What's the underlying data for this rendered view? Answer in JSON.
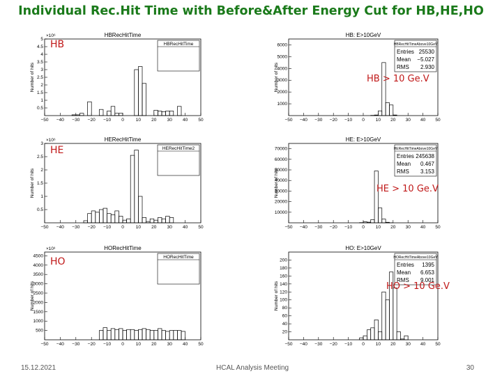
{
  "title": "Individual Rec.Hit Time with Before&After Energy Cut for HB,HE,HO",
  "footer": {
    "date": "15.12.2021",
    "meeting": "HCAL Analysis Meeting",
    "page": "30"
  },
  "colors": {
    "title": "#1a7a1a",
    "labels": "#c01818",
    "hist": "#000000"
  },
  "chart_data": [
    {
      "type": "histogram",
      "detector_label": "HB",
      "title": "HBRecHitTime",
      "stats_title": "HBRecHitTime",
      "ylabel": "Number of hits",
      "exponent": "×10⁶",
      "xlim": [
        -50,
        50
      ],
      "ylim": [
        0,
        5.0
      ],
      "xticks": [
        -50,
        -40,
        -30,
        -20,
        -10,
        0,
        10,
        20,
        30,
        40,
        50
      ],
      "yticks": [
        0.5,
        1,
        1.5,
        2,
        2.5,
        3,
        3.5,
        4,
        4.5,
        5
      ],
      "bin_width": 2.5,
      "values": [
        0,
        0,
        0,
        0,
        0,
        0,
        0,
        0.05,
        0.05,
        0.15,
        0,
        0.9,
        0,
        0,
        0.4,
        0,
        0.3,
        0.6,
        0.15,
        0.15,
        0,
        0,
        0,
        3.0,
        3.2,
        2.1,
        0,
        0,
        0.35,
        0.3,
        0.25,
        0.3,
        0.3,
        0,
        0.6,
        0,
        0,
        0,
        0,
        0
      ]
    },
    {
      "type": "histogram",
      "cut_label": "HB > 10 Ge.V",
      "title": "HB: E>10GeV",
      "stats_title": "HBRecHitTimeAbove10GeV",
      "ylabel": "Number of hits",
      "exponent": "",
      "stats": [
        {
          "label": "Entries",
          "value": "25530"
        },
        {
          "label": "Mean",
          "value": "−5.027"
        },
        {
          "label": "RMS",
          "value": "2.930"
        }
      ],
      "xlim": [
        -50,
        50
      ],
      "ylim": [
        0,
        6500
      ],
      "xticks": [
        -50,
        -40,
        -30,
        -20,
        -10,
        0,
        10,
        20,
        30,
        40,
        50
      ],
      "yticks": [
        1000,
        2000,
        3000,
        4000,
        5000,
        6000
      ],
      "bin_width": 2.5,
      "values": [
        0,
        0,
        0,
        0,
        0,
        0,
        0,
        0,
        0,
        0,
        0,
        0,
        0,
        0,
        0,
        0,
        0,
        0,
        0,
        0,
        0,
        0,
        20,
        50,
        400,
        4500,
        1100,
        900,
        50,
        0,
        0,
        0,
        0,
        0,
        0,
        0,
        0,
        0,
        0,
        0
      ]
    },
    {
      "type": "histogram",
      "detector_label": "HE",
      "title": "HERecHitTime",
      "stats_title": "HERecHitTime2",
      "ylabel": "Number of hits",
      "exponent": "×10⁶",
      "xlim": [
        -50,
        50
      ],
      "ylim": [
        0,
        3.0
      ],
      "xticks": [
        -50,
        -40,
        -30,
        -20,
        -10,
        0,
        10,
        20,
        30,
        40,
        50
      ],
      "yticks": [
        0.5,
        1,
        1.5,
        2,
        2.5,
        3
      ],
      "bin_width": 2.5,
      "values": [
        0,
        0,
        0,
        0,
        0,
        0,
        0,
        0,
        0,
        0,
        0.08,
        0.35,
        0.45,
        0.4,
        0.5,
        0.55,
        0.35,
        0.3,
        0.45,
        0.25,
        0.1,
        0.15,
        2.55,
        2.75,
        1.0,
        0.2,
        0.05,
        0.15,
        0.1,
        0.2,
        0.15,
        0.25,
        0.2,
        0,
        0,
        0,
        0,
        0,
        0,
        0
      ]
    },
    {
      "type": "histogram",
      "cut_label": "HE > 10 Ge.V",
      "title": "HE: E>10GeV",
      "stats_title": "HERecHitTimeAbove10GeV",
      "ylabel": "Number of hits",
      "exponent": "",
      "stats": [
        {
          "label": "Entries",
          "value": "245638"
        },
        {
          "label": "Mean",
          "value": "0.467"
        },
        {
          "label": "RMS",
          "value": "3.153"
        }
      ],
      "xlim": [
        -50,
        50
      ],
      "ylim": [
        0,
        75000
      ],
      "xticks": [
        -50,
        -40,
        -30,
        -20,
        -10,
        0,
        10,
        20,
        30,
        40,
        50
      ],
      "yticks": [
        10000,
        20000,
        30000,
        40000,
        50000,
        60000,
        70000
      ],
      "bin_width": 2.5,
      "values": [
        0,
        0,
        0,
        0,
        0,
        0,
        0,
        0,
        0,
        0,
        0,
        0,
        0,
        0,
        0,
        0,
        0,
        0,
        0,
        200,
        1000,
        600,
        3000,
        49000,
        14000,
        3500,
        500,
        100,
        0,
        0,
        0,
        0,
        0,
        0,
        0,
        0,
        0,
        0,
        0,
        0
      ]
    },
    {
      "type": "histogram",
      "detector_label": "HO",
      "title": "HORecHitTime",
      "stats_title": "HORecHitTime",
      "ylabel": "Number of hits",
      "exponent": "×10³",
      "xlim": [
        -50,
        50
      ],
      "ylim": [
        0,
        4700
      ],
      "xticks": [
        -50,
        -40,
        -30,
        -20,
        -10,
        0,
        10,
        20,
        30,
        40,
        50
      ],
      "yticks": [
        500,
        1000,
        1500,
        2000,
        2500,
        3000,
        3500,
        4000,
        4500
      ],
      "bin_width": 2.5,
      "values": [
        0,
        0,
        0,
        0,
        0,
        0,
        0,
        0,
        0,
        0,
        0,
        0,
        0,
        0,
        500,
        650,
        500,
        600,
        550,
        600,
        500,
        550,
        550,
        500,
        550,
        600,
        550,
        500,
        500,
        600,
        500,
        450,
        500,
        500,
        500,
        450,
        0,
        0,
        0,
        0
      ]
    },
    {
      "type": "histogram",
      "cut_label": "HO > 10 Ge.V",
      "title": "HO: E>10GeV",
      "stats_title": "HORecHitTimeAbove10GeV",
      "ylabel": "Number of hits",
      "exponent": "",
      "stats": [
        {
          "label": "Entries",
          "value": "1395"
        },
        {
          "label": "Mean",
          "value": "6.653"
        },
        {
          "label": "RMS",
          "value": "9.001"
        }
      ],
      "xlim": [
        -50,
        50
      ],
      "ylim": [
        0,
        220
      ],
      "xticks": [
        -50,
        -40,
        -30,
        -20,
        -10,
        0,
        10,
        20,
        30,
        40,
        50
      ],
      "yticks": [
        20,
        40,
        60,
        80,
        100,
        120,
        140,
        160,
        180,
        200
      ],
      "bin_width": 2.5,
      "values": [
        0,
        0,
        0,
        0,
        0,
        0,
        0,
        0,
        0,
        0,
        0,
        0,
        0,
        0,
        0,
        0,
        0,
        0,
        0,
        5,
        10,
        25,
        30,
        50,
        20,
        120,
        100,
        170,
        130,
        20,
        2,
        10,
        0,
        0,
        0,
        0,
        0,
        0,
        0,
        0
      ]
    }
  ]
}
